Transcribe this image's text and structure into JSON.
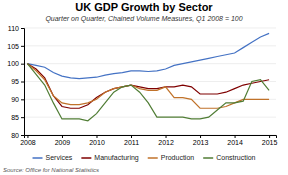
{
  "chart_data": {
    "type": "line",
    "title": "UK GDP Growth by Sector",
    "subtitle": "Quarter on Quarter, Chained Volume Measures, Q1 2008 = 100",
    "source": "Source: Office for National Statistics",
    "x": [
      2008.0,
      2008.25,
      2008.5,
      2008.75,
      2009.0,
      2009.25,
      2009.5,
      2009.75,
      2010.0,
      2010.25,
      2010.5,
      2010.75,
      2011.0,
      2011.25,
      2011.5,
      2011.75,
      2012.0,
      2012.25,
      2012.5,
      2012.75,
      2013.0,
      2013.25,
      2013.5,
      2013.75,
      2014.0,
      2014.25,
      2014.5,
      2014.75,
      2015.0
    ],
    "series": [
      {
        "name": "Services",
        "color": "#4472c4",
        "values": [
          100,
          99.5,
          99.0,
          97.5,
          96.5,
          96.0,
          95.8,
          96.0,
          96.2,
          96.8,
          97.2,
          97.5,
          98.0,
          98.0,
          97.8,
          98.0,
          98.5,
          99.5,
          100.0,
          100.5,
          101.0,
          101.5,
          102.0,
          102.5,
          103.0,
          104.5,
          106.0,
          107.5,
          108.5
        ]
      },
      {
        "name": "Manufacturing",
        "color": "#7f0000",
        "values": [
          100,
          98.5,
          96.0,
          91.0,
          88.0,
          87.5,
          87.5,
          88.5,
          90.5,
          92.0,
          93.0,
          93.5,
          94.0,
          93.5,
          93.0,
          93.0,
          93.5,
          93.5,
          94.0,
          93.5,
          91.5,
          91.5,
          91.5,
          92.0,
          93.0,
          94.0,
          94.5,
          95.0,
          95.5
        ]
      },
      {
        "name": "Production",
        "color": "#c0722a",
        "values": [
          100,
          98.0,
          95.5,
          91.0,
          89.0,
          88.5,
          88.5,
          89.0,
          90.0,
          92.0,
          93.0,
          93.5,
          94.0,
          93.0,
          92.5,
          92.5,
          93.5,
          90.5,
          90.5,
          90.0,
          87.5,
          87.5,
          87.5,
          88.0,
          89.0,
          90.0,
          90.0,
          90.0,
          90.0
        ]
      },
      {
        "name": "Construction",
        "color": "#507d35",
        "values": [
          100,
          97.0,
          94.0,
          89.0,
          84.5,
          84.5,
          84.5,
          84.0,
          86.0,
          89.0,
          92.0,
          93.5,
          94.0,
          92.0,
          89.0,
          85.0,
          85.0,
          85.0,
          85.0,
          84.5,
          84.5,
          85.0,
          87.0,
          89.0,
          89.0,
          89.5,
          95.0,
          95.5,
          92.5
        ]
      }
    ],
    "xlim": [
      2007.9,
      2015.2
    ],
    "xticks": [
      2008,
      2009,
      2010,
      2011,
      2012,
      2013,
      2014,
      2015
    ],
    "ylim": [
      80,
      110
    ],
    "yticks": [
      80,
      85,
      90,
      95,
      100,
      105,
      110
    ],
    "grid": true,
    "legend": "bottom"
  }
}
